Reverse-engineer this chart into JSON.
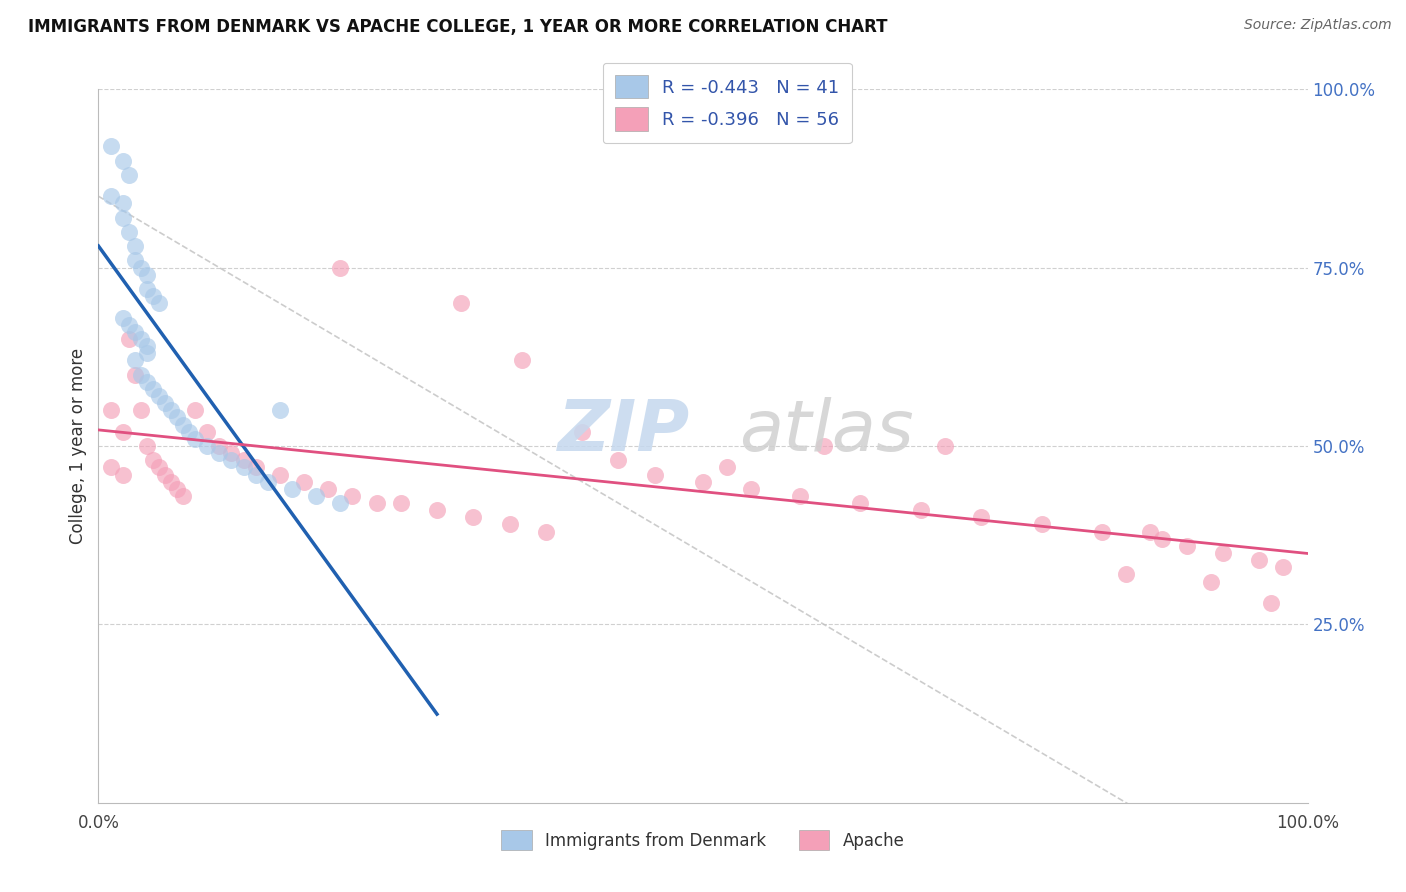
{
  "title": "IMMIGRANTS FROM DENMARK VS APACHE COLLEGE, 1 YEAR OR MORE CORRELATION CHART",
  "source": "Source: ZipAtlas.com",
  "ylabel": "College, 1 year or more",
  "legend_label1": "Immigrants from Denmark",
  "legend_label2": "Apache",
  "r1": -0.443,
  "n1": 41,
  "r2": -0.396,
  "n2": 56,
  "xlim": [
    0.0,
    1.0
  ],
  "ylim": [
    0.0,
    1.0
  ],
  "ytick_positions_right": [
    1.0,
    0.75,
    0.5,
    0.25
  ],
  "ytick_labels_right": [
    "100.0%",
    "75.0%",
    "50.0%",
    "25.0%"
  ],
  "color_blue": "#a8c8e8",
  "color_pink": "#f4a0b8",
  "color_line_blue": "#2060b0",
  "color_line_pink": "#e05080",
  "color_dashed": "#c0c0c0",
  "color_right_axis": "#4472c4",
  "blue_scatter_x": [
    0.01,
    0.02,
    0.025,
    0.01,
    0.02,
    0.02,
    0.025,
    0.03,
    0.03,
    0.035,
    0.04,
    0.04,
    0.045,
    0.05,
    0.02,
    0.025,
    0.03,
    0.035,
    0.04,
    0.04,
    0.03,
    0.035,
    0.04,
    0.045,
    0.05,
    0.055,
    0.06,
    0.065,
    0.07,
    0.075,
    0.08,
    0.09,
    0.1,
    0.11,
    0.12,
    0.13,
    0.14,
    0.16,
    0.18,
    0.2,
    0.15
  ],
  "blue_scatter_y": [
    0.92,
    0.9,
    0.88,
    0.85,
    0.84,
    0.82,
    0.8,
    0.78,
    0.76,
    0.75,
    0.74,
    0.72,
    0.71,
    0.7,
    0.68,
    0.67,
    0.66,
    0.65,
    0.64,
    0.63,
    0.62,
    0.6,
    0.59,
    0.58,
    0.57,
    0.56,
    0.55,
    0.54,
    0.53,
    0.52,
    0.51,
    0.5,
    0.49,
    0.48,
    0.47,
    0.46,
    0.45,
    0.44,
    0.43,
    0.42,
    0.55
  ],
  "pink_scatter_x": [
    0.01,
    0.01,
    0.02,
    0.02,
    0.025,
    0.03,
    0.035,
    0.04,
    0.045,
    0.05,
    0.055,
    0.06,
    0.065,
    0.07,
    0.08,
    0.09,
    0.1,
    0.11,
    0.12,
    0.13,
    0.15,
    0.17,
    0.19,
    0.21,
    0.23,
    0.25,
    0.28,
    0.31,
    0.34,
    0.37,
    0.4,
    0.43,
    0.46,
    0.5,
    0.54,
    0.58,
    0.63,
    0.68,
    0.73,
    0.78,
    0.83,
    0.88,
    0.9,
    0.93,
    0.96,
    0.98,
    0.2,
    0.3,
    0.35,
    0.52,
    0.6,
    0.7,
    0.85,
    0.87,
    0.92,
    0.97
  ],
  "pink_scatter_y": [
    0.55,
    0.47,
    0.52,
    0.46,
    0.65,
    0.6,
    0.55,
    0.5,
    0.48,
    0.47,
    0.46,
    0.45,
    0.44,
    0.43,
    0.55,
    0.52,
    0.5,
    0.49,
    0.48,
    0.47,
    0.46,
    0.45,
    0.44,
    0.43,
    0.42,
    0.42,
    0.41,
    0.4,
    0.39,
    0.38,
    0.52,
    0.48,
    0.46,
    0.45,
    0.44,
    0.43,
    0.42,
    0.41,
    0.4,
    0.39,
    0.38,
    0.37,
    0.36,
    0.35,
    0.34,
    0.33,
    0.75,
    0.7,
    0.62,
    0.47,
    0.5,
    0.5,
    0.32,
    0.38,
    0.31,
    0.28
  ],
  "background_color": "#ffffff",
  "grid_color": "#d0d0d0"
}
